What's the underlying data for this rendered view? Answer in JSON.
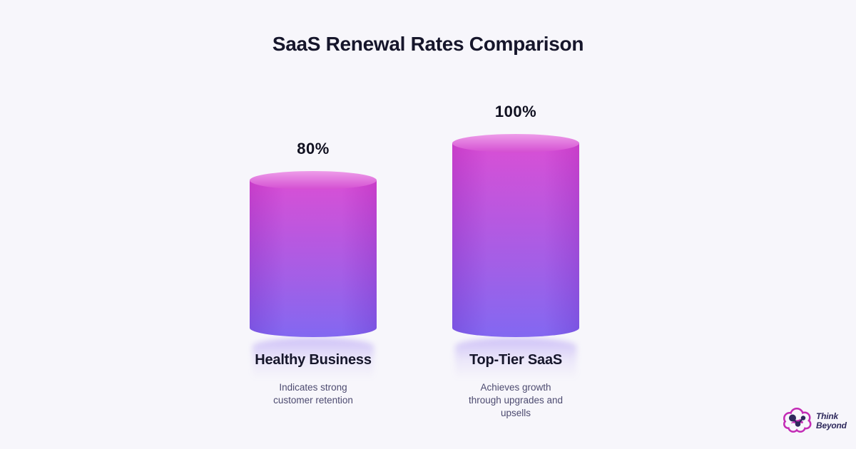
{
  "page": {
    "background": "#f7f6fb"
  },
  "chart_data": {
    "type": "bar",
    "variant": "3d-cylinder",
    "title": "SaaS Renewal Rates Comparison",
    "categories": [
      "Healthy Business",
      "Top-Tier SaaS"
    ],
    "values": [
      80,
      100
    ],
    "value_labels": [
      "80%",
      "100%"
    ],
    "descriptions": [
      "Indicates strong customer retention",
      "Achieves growth through upgrades and upsells"
    ],
    "unit": "%",
    "ylim": [
      0,
      100
    ],
    "axes_visible": false,
    "grid": false,
    "legend": false,
    "colors": {
      "gradient_start": "#d644d3",
      "gradient_end": "#7b5ff0",
      "cylinder_top_start": "#ee9ce9",
      "cylinder_top_end": "#d44ed2"
    }
  },
  "brand": {
    "name_line1": "Think",
    "name_line2": "Beyond",
    "logo_outline_color": "#c32bb5",
    "logo_node_color": "#2e295c",
    "text_color": "#2e295c"
  }
}
